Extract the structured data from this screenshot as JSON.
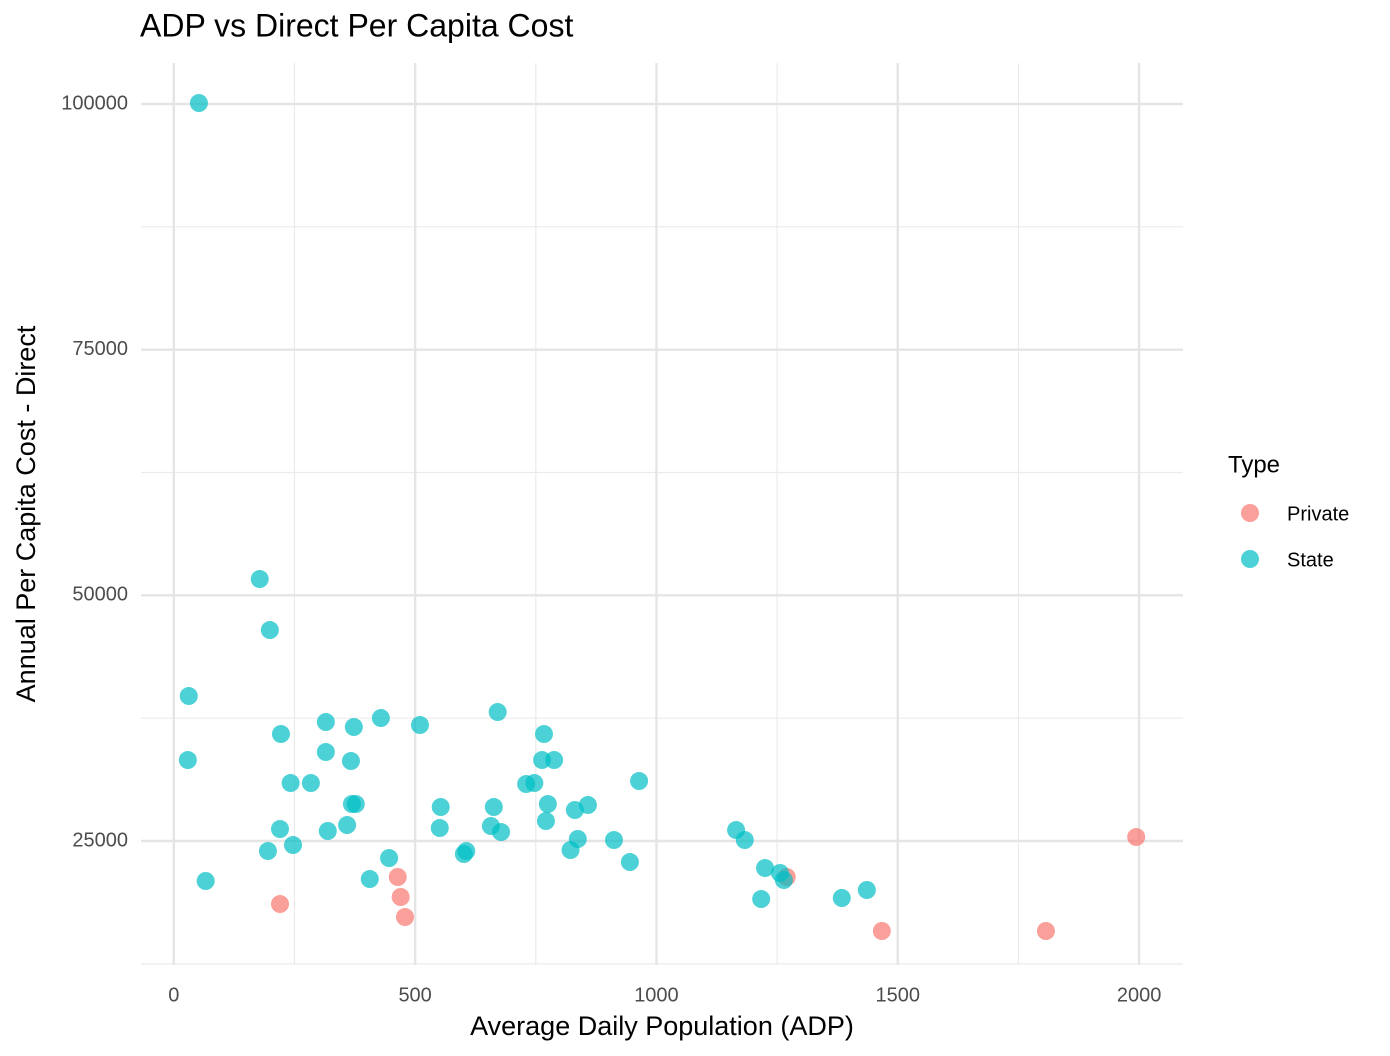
{
  "chart_data": {
    "type": "scatter",
    "title": "ADP vs Direct Per Capita Cost",
    "x_label": "Average Daily Population (ADP)",
    "y_label": "Annual Per Capita Cost - Direct",
    "legend_title": "Type",
    "legend_position": "right",
    "grid": true,
    "xlim": [
      -68,
      2091
    ],
    "ylim": [
      12382,
      104172
    ],
    "xticks": [
      0,
      500,
      1000,
      1500,
      2000
    ],
    "yticks": [
      25000,
      50000,
      75000,
      100000
    ],
    "x_minor_ticks": [
      250,
      750,
      1250,
      1750
    ],
    "y_minor_ticks": [
      12500,
      37500,
      62500,
      87500
    ],
    "series": [
      {
        "name": "Private",
        "color": "#F8766D",
        "x": [
          220,
          464,
          470,
          479,
          1270,
          1467,
          1807,
          1994
        ],
        "values": [
          18589,
          21337,
          19302,
          17266,
          21337,
          15842,
          15842,
          25407
        ]
      },
      {
        "name": "State",
        "color": "#00BFC4",
        "x": [
          52,
          178,
          199,
          31,
          29,
          66,
          222,
          315,
          373,
          429,
          510,
          315,
          367,
          242,
          284,
          369,
          377,
          220,
          319,
          359,
          195,
          247,
          446,
          406,
          553,
          551,
          601,
          606,
          671,
          767,
          763,
          788,
          730,
          747,
          964,
          663,
          775,
          858,
          831,
          771,
          657,
          678,
          837,
          912,
          822,
          945,
          1165,
          1183,
          1225,
          1256,
          1264,
          1217,
          1384,
          1436
        ],
        "values": [
          100100,
          51661,
          46471,
          39755,
          33243,
          20930,
          35888,
          37110,
          36600,
          37516,
          36804,
          34057,
          33141,
          30902,
          30902,
          28765,
          28765,
          26221,
          26018,
          26628,
          23982,
          24593,
          23270,
          21133,
          28460,
          26323,
          23677,
          23982,
          38127,
          35888,
          33243,
          33243,
          30800,
          30902,
          31106,
          28460,
          28765,
          28663,
          28155,
          27035,
          26526,
          25916,
          25204,
          25102,
          24084,
          22863,
          26119,
          25102,
          22252,
          21744,
          21031,
          19098,
          19200,
          20014
        ]
      }
    ]
  }
}
